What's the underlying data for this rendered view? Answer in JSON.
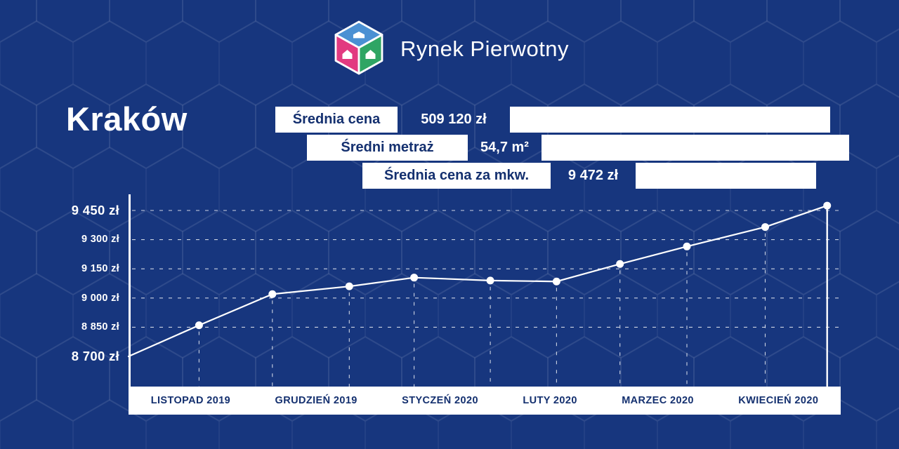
{
  "colors": {
    "background": "#17367E",
    "white": "#FFFFFF",
    "navy_text": "#14306F",
    "logo_blue": "#4A90D3",
    "logo_pink": "#E23A80",
    "logo_green": "#2FA564"
  },
  "logo": {
    "brand": "Rynek Pierwotny"
  },
  "title": "Kraków",
  "stats": [
    {
      "label": "Średnia cena",
      "value": "509 120 zł"
    },
    {
      "label": "Średni metraż",
      "value": "54,7 m²"
    },
    {
      "label": "Średnia cena za mkw.",
      "value": "9 472 zł"
    }
  ],
  "chart_data": {
    "type": "line",
    "title": "Średnia cena za mkw. — Kraków",
    "ylim": [
      8700,
      9500
    ],
    "grid": "dashed",
    "x_labels": [
      "LISTOPAD 2019",
      "GRUDZIEŃ 2019",
      "STYCZEŃ 2020",
      "LUTY 2020",
      "MARZEC 2020",
      "KWIECIEŃ 2020"
    ],
    "y_ticks": [
      {
        "label": "9 450 zł",
        "value": 9450,
        "emphasis": true
      },
      {
        "label": "9 300 zł",
        "value": 9300,
        "emphasis": false
      },
      {
        "label": "9 150 zł",
        "value": 9150,
        "emphasis": false
      },
      {
        "label": "9 000 zł",
        "value": 9000,
        "emphasis": false
      },
      {
        "label": "8 850 zł",
        "value": 8850,
        "emphasis": false
      },
      {
        "label": "8 700 zł",
        "value": 8700,
        "emphasis": true
      }
    ],
    "points": [
      {
        "x": 0.0,
        "value": 8700
      },
      {
        "x": 0.099,
        "value": 8860
      },
      {
        "x": 0.202,
        "value": 9020
      },
      {
        "x": 0.31,
        "value": 9060
      },
      {
        "x": 0.401,
        "value": 9105
      },
      {
        "x": 0.508,
        "value": 9090
      },
      {
        "x": 0.601,
        "value": 9085
      },
      {
        "x": 0.69,
        "value": 9175
      },
      {
        "x": 0.784,
        "value": 9265
      },
      {
        "x": 0.894,
        "value": 9365
      },
      {
        "x": 0.981,
        "value": 9475
      }
    ]
  }
}
